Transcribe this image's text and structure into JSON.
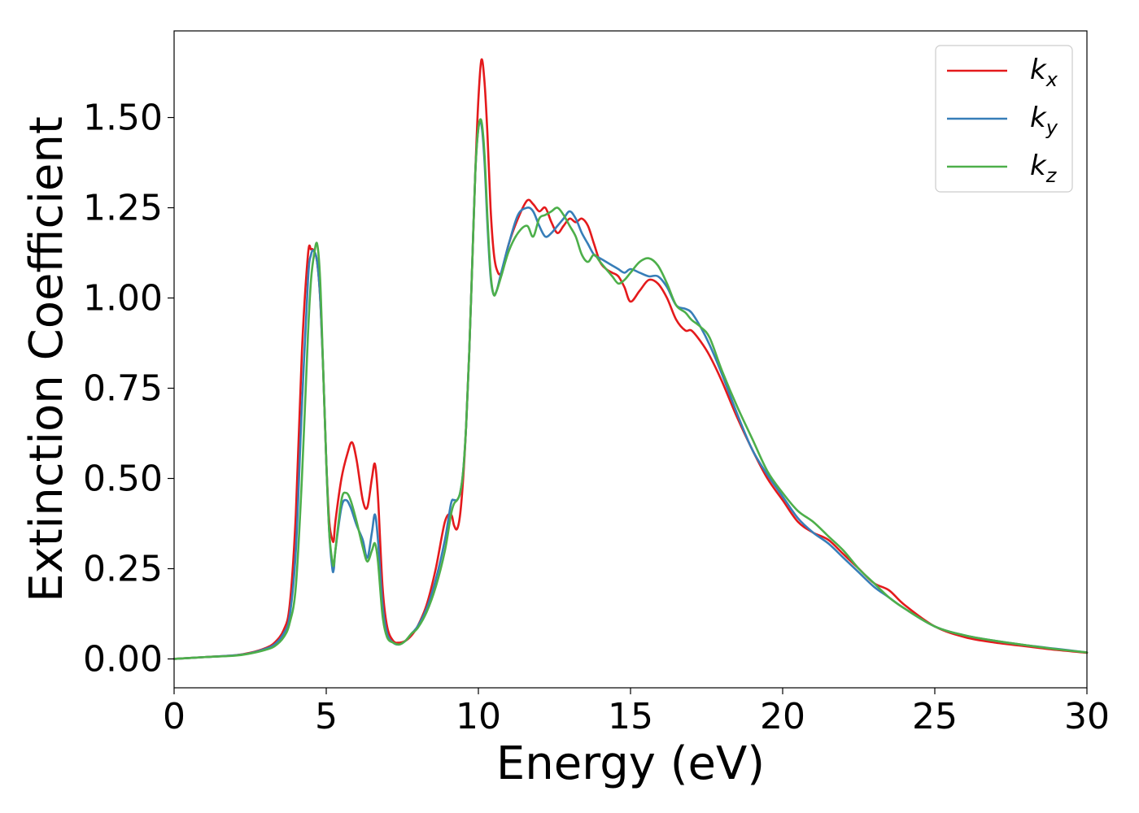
{
  "chart_data": {
    "type": "line",
    "xlabel": "Energy (eV)",
    "ylabel": "Extinction Coefficient",
    "xlim": [
      0,
      30
    ],
    "ylim": [
      -0.08,
      1.74
    ],
    "xticks": [
      0,
      5,
      10,
      15,
      20,
      25,
      30
    ],
    "xtick_labels": [
      "0",
      "5",
      "10",
      "15",
      "20",
      "25",
      "30"
    ],
    "yticks": [
      0,
      0.25,
      0.5,
      0.75,
      1.0,
      1.25,
      1.5
    ],
    "ytick_labels": [
      "0.00",
      "0.25",
      "0.50",
      "0.75",
      "1.00",
      "1.25",
      "1.50"
    ],
    "grid": false,
    "legend_position": "top-right",
    "series": [
      {
        "name": "k_x",
        "legend_base": "k",
        "legend_sub": "x",
        "color": "#e41a1c",
        "x": [
          0,
          1,
          2,
          2.5,
          3,
          3.3,
          3.6,
          3.8,
          4.0,
          4.2,
          4.4,
          4.5,
          4.6,
          4.7,
          4.8,
          4.9,
          5.0,
          5.1,
          5.2,
          5.25,
          5.3,
          5.5,
          5.7,
          5.85,
          6.0,
          6.2,
          6.35,
          6.5,
          6.6,
          6.7,
          6.85,
          7.0,
          7.2,
          7.4,
          7.6,
          7.8,
          8.0,
          8.3,
          8.6,
          8.9,
          9.1,
          9.2,
          9.3,
          9.4,
          9.5,
          9.6,
          9.7,
          9.8,
          9.9,
          10.0,
          10.1,
          10.2,
          10.3,
          10.4,
          10.5,
          10.6,
          10.75,
          11.0,
          11.3,
          11.6,
          11.8,
          12.0,
          12.2,
          12.4,
          12.6,
          12.8,
          13.0,
          13.2,
          13.4,
          13.6,
          13.8,
          14.0,
          14.2,
          14.4,
          14.6,
          14.8,
          15.0,
          15.3,
          15.6,
          15.9,
          16.2,
          16.5,
          16.8,
          17.0,
          17.3,
          17.6,
          18.0,
          18.5,
          19.0,
          19.5,
          20.0,
          20.5,
          21.0,
          21.5,
          22.0,
          22.5,
          23.0,
          23.5,
          24.0,
          25.0,
          26.0,
          27.0,
          28.0,
          29.0,
          30.0
        ],
        "y": [
          0.0,
          0.005,
          0.01,
          0.017,
          0.03,
          0.045,
          0.08,
          0.15,
          0.4,
          0.85,
          1.12,
          1.135,
          1.13,
          1.1,
          1.0,
          0.8,
          0.55,
          0.38,
          0.33,
          0.33,
          0.38,
          0.5,
          0.57,
          0.6,
          0.55,
          0.44,
          0.42,
          0.5,
          0.54,
          0.45,
          0.2,
          0.09,
          0.05,
          0.045,
          0.05,
          0.065,
          0.09,
          0.15,
          0.25,
          0.38,
          0.4,
          0.37,
          0.36,
          0.4,
          0.5,
          0.65,
          0.85,
          1.1,
          1.35,
          1.55,
          1.66,
          1.6,
          1.45,
          1.25,
          1.13,
          1.08,
          1.07,
          1.15,
          1.22,
          1.27,
          1.26,
          1.24,
          1.25,
          1.21,
          1.18,
          1.2,
          1.22,
          1.21,
          1.22,
          1.2,
          1.15,
          1.1,
          1.08,
          1.07,
          1.06,
          1.03,
          0.99,
          1.02,
          1.05,
          1.04,
          1.0,
          0.94,
          0.91,
          0.91,
          0.88,
          0.84,
          0.77,
          0.67,
          0.58,
          0.5,
          0.44,
          0.38,
          0.35,
          0.33,
          0.29,
          0.25,
          0.21,
          0.19,
          0.15,
          0.09,
          0.06,
          0.045,
          0.035,
          0.025,
          0.017
        ]
      },
      {
        "name": "k_y",
        "legend_base": "k",
        "legend_sub": "y",
        "color": "#377eb8",
        "x": [
          0,
          1,
          2,
          2.5,
          3,
          3.3,
          3.6,
          3.8,
          4.0,
          4.2,
          4.4,
          4.5,
          4.6,
          4.7,
          4.8,
          4.9,
          5.0,
          5.1,
          5.2,
          5.25,
          5.3,
          5.5,
          5.65,
          5.8,
          6.0,
          6.2,
          6.35,
          6.5,
          6.6,
          6.7,
          6.85,
          7.0,
          7.2,
          7.4,
          7.6,
          7.8,
          8.0,
          8.3,
          8.6,
          8.9,
          9.1,
          9.2,
          9.3,
          9.4,
          9.5,
          9.6,
          9.7,
          9.8,
          9.9,
          10.0,
          10.1,
          10.2,
          10.3,
          10.4,
          10.5,
          10.6,
          10.75,
          11.0,
          11.3,
          11.6,
          11.8,
          12.0,
          12.2,
          12.4,
          12.6,
          12.8,
          13.0,
          13.2,
          13.4,
          13.6,
          13.8,
          14.0,
          14.2,
          14.4,
          14.6,
          14.8,
          15.0,
          15.3,
          15.6,
          15.9,
          16.2,
          16.5,
          16.8,
          17.0,
          17.3,
          17.6,
          18.0,
          18.5,
          19.0,
          19.5,
          20.0,
          20.5,
          21.0,
          21.5,
          22.0,
          22.5,
          23.0,
          23.5,
          24.0,
          25.0,
          26.0,
          27.0,
          28.0,
          29.0,
          30.0
        ],
        "y": [
          0.0,
          0.005,
          0.01,
          0.016,
          0.028,
          0.04,
          0.07,
          0.12,
          0.3,
          0.7,
          1.05,
          1.12,
          1.13,
          1.1,
          1.0,
          0.8,
          0.55,
          0.35,
          0.25,
          0.25,
          0.3,
          0.42,
          0.44,
          0.42,
          0.37,
          0.33,
          0.28,
          0.35,
          0.4,
          0.33,
          0.15,
          0.07,
          0.045,
          0.04,
          0.05,
          0.07,
          0.09,
          0.14,
          0.22,
          0.33,
          0.43,
          0.44,
          0.44,
          0.46,
          0.52,
          0.65,
          0.85,
          1.1,
          1.35,
          1.47,
          1.48,
          1.38,
          1.2,
          1.06,
          1.01,
          1.02,
          1.07,
          1.15,
          1.23,
          1.25,
          1.24,
          1.2,
          1.17,
          1.18,
          1.2,
          1.22,
          1.24,
          1.22,
          1.18,
          1.15,
          1.12,
          1.11,
          1.1,
          1.09,
          1.08,
          1.07,
          1.08,
          1.07,
          1.06,
          1.06,
          1.03,
          0.98,
          0.97,
          0.96,
          0.92,
          0.87,
          0.79,
          0.68,
          0.58,
          0.51,
          0.45,
          0.39,
          0.35,
          0.32,
          0.28,
          0.24,
          0.2,
          0.17,
          0.14,
          0.09,
          0.065,
          0.05,
          0.038,
          0.028,
          0.018
        ]
      },
      {
        "name": "k_z",
        "legend_base": "k",
        "legend_sub": "z",
        "color": "#4daf4a",
        "x": [
          0,
          1,
          2,
          2.5,
          3,
          3.3,
          3.6,
          3.8,
          4.0,
          4.2,
          4.4,
          4.5,
          4.6,
          4.7,
          4.8,
          4.9,
          5.0,
          5.1,
          5.2,
          5.25,
          5.3,
          5.5,
          5.65,
          5.8,
          6.0,
          6.2,
          6.35,
          6.5,
          6.6,
          6.7,
          6.85,
          7.0,
          7.2,
          7.4,
          7.6,
          7.8,
          8.0,
          8.3,
          8.6,
          8.9,
          9.1,
          9.2,
          9.3,
          9.4,
          9.5,
          9.6,
          9.7,
          9.8,
          9.9,
          10.0,
          10.1,
          10.2,
          10.3,
          10.4,
          10.5,
          10.6,
          10.75,
          11.0,
          11.3,
          11.6,
          11.8,
          12.0,
          12.2,
          12.4,
          12.6,
          12.8,
          13.0,
          13.2,
          13.4,
          13.6,
          13.8,
          14.0,
          14.2,
          14.4,
          14.6,
          14.8,
          15.0,
          15.3,
          15.6,
          15.9,
          16.2,
          16.5,
          16.8,
          17.0,
          17.3,
          17.6,
          18.0,
          18.5,
          19.0,
          19.5,
          20.0,
          20.5,
          21.0,
          21.5,
          22.0,
          22.5,
          23.0,
          23.5,
          24.0,
          25.0,
          26.0,
          27.0,
          28.0,
          29.0,
          30.0
        ],
        "y": [
          0.0,
          0.005,
          0.009,
          0.015,
          0.025,
          0.035,
          0.06,
          0.1,
          0.2,
          0.5,
          0.9,
          1.05,
          1.12,
          1.15,
          1.05,
          0.8,
          0.55,
          0.35,
          0.27,
          0.26,
          0.3,
          0.44,
          0.46,
          0.44,
          0.38,
          0.31,
          0.27,
          0.3,
          0.32,
          0.27,
          0.12,
          0.06,
          0.045,
          0.04,
          0.05,
          0.07,
          0.085,
          0.13,
          0.2,
          0.3,
          0.4,
          0.43,
          0.44,
          0.46,
          0.52,
          0.65,
          0.85,
          1.1,
          1.35,
          1.47,
          1.49,
          1.4,
          1.22,
          1.07,
          1.01,
          1.02,
          1.06,
          1.13,
          1.18,
          1.2,
          1.17,
          1.22,
          1.23,
          1.24,
          1.25,
          1.23,
          1.2,
          1.17,
          1.12,
          1.1,
          1.12,
          1.1,
          1.08,
          1.06,
          1.04,
          1.05,
          1.07,
          1.1,
          1.11,
          1.09,
          1.04,
          0.98,
          0.96,
          0.94,
          0.92,
          0.89,
          0.8,
          0.7,
          0.61,
          0.52,
          0.46,
          0.41,
          0.38,
          0.34,
          0.3,
          0.25,
          0.21,
          0.17,
          0.14,
          0.09,
          0.065,
          0.05,
          0.038,
          0.027,
          0.018
        ]
      }
    ]
  }
}
